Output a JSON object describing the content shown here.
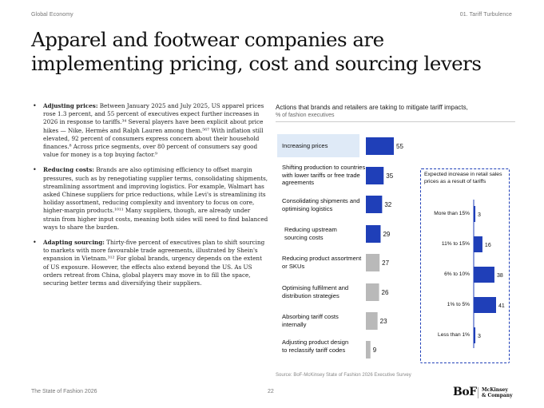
{
  "header": {
    "left": "Global Economy",
    "right": "01. Tariff Turbulence"
  },
  "title": "Apparel and footwear companies are implementing pricing, cost and sourcing levers",
  "bullets": [
    {
      "heading": "Adjusting prices:",
      "text": " Between January 2025 and July 2025, US apparel prices rose 1.3 percent, and 55 percent of executives expect further increases in 2026 in response to tariffs.³⁴ Several players have been explicit about price hikes — Nike, Hermès and Ralph Lauren among them.⁵⁶⁷ With inflation still elevated, 92 percent of consumers express concern about their household finances.⁸ Across price segments, over 80 percent of consumers say good value for money is a top buying factor.⁹"
    },
    {
      "heading": "Reducing costs:",
      "text": " Brands are also optimising efficiency to offset margin pressures, such as by renegotiating supplier terms, consolidating shipments, streamlining assortment and improving logistics. For example, Walmart has asked Chinese suppliers for price reductions, while Levi's is streamlining its holiday assortment, reducing complexity and inventory to focus on core, higher-margin products.¹⁰¹¹ Many suppliers, though, are already under strain from higher input costs, meaning both sides will need to find balanced ways to share the burden."
    },
    {
      "heading": "Adapting sourcing:",
      "text": " Thirty-five percent of executives plan to shift sourcing to markets with more favourable trade agreements, illustrated by Shein's expansion in Vietnam.³¹² For global brands, urgency depends on the extent of US exposure. However, the effects also extend beyond the US. As US orders retreat from China, global players may move in to fill the space, securing better terms and diversifying their suppliers."
    }
  ],
  "chart_data": [
    {
      "type": "bar",
      "orientation": "horizontal",
      "title": "Actions that brands and retailers are taking to mitigate tariff impacts,",
      "subtitle": "% of fashion executives",
      "categories": [
        "Increasing prices",
        "Shifting production to countries with lower tariffs or free trade agreements",
        "Consolidating shipments and optimising logistics",
        "Reducing upstream sourcing costs",
        "Reducing product assortment or SKUs",
        "Optimising fulfilment and distribution strategies",
        "Absorbing tariff costs internally",
        "Adjusting product design to reclassify tariff codes"
      ],
      "values": [
        55,
        35,
        32,
        29,
        27,
        26,
        23,
        9
      ],
      "xlim": [
        0,
        55
      ],
      "colors": {
        "highlight": "#1f3fb8",
        "rest": "#b9b9b9",
        "label": "#111111"
      }
    },
    {
      "type": "bar",
      "orientation": "horizontal",
      "title": "Expected increase in retail sales prices as a result of tariffs",
      "categories": [
        "More than 15%",
        "11% to 15%",
        "6% to 10%",
        "1% to 5%",
        "Less than 1%"
      ],
      "values": [
        3,
        16,
        38,
        41,
        3
      ],
      "xlim": [
        0,
        41
      ],
      "colors": {
        "bar": "#1f3fb8",
        "axis": "#1f3fb8"
      }
    }
  ],
  "source": "Source: BoF-McKinsey State of Fashion 2026 Executive Survey",
  "footer": {
    "left": "The State of Fashion 2026",
    "page": "22",
    "logo_bof": "BoF",
    "logo_mck_1": "McKinsey",
    "logo_mck_2": "& Company"
  }
}
